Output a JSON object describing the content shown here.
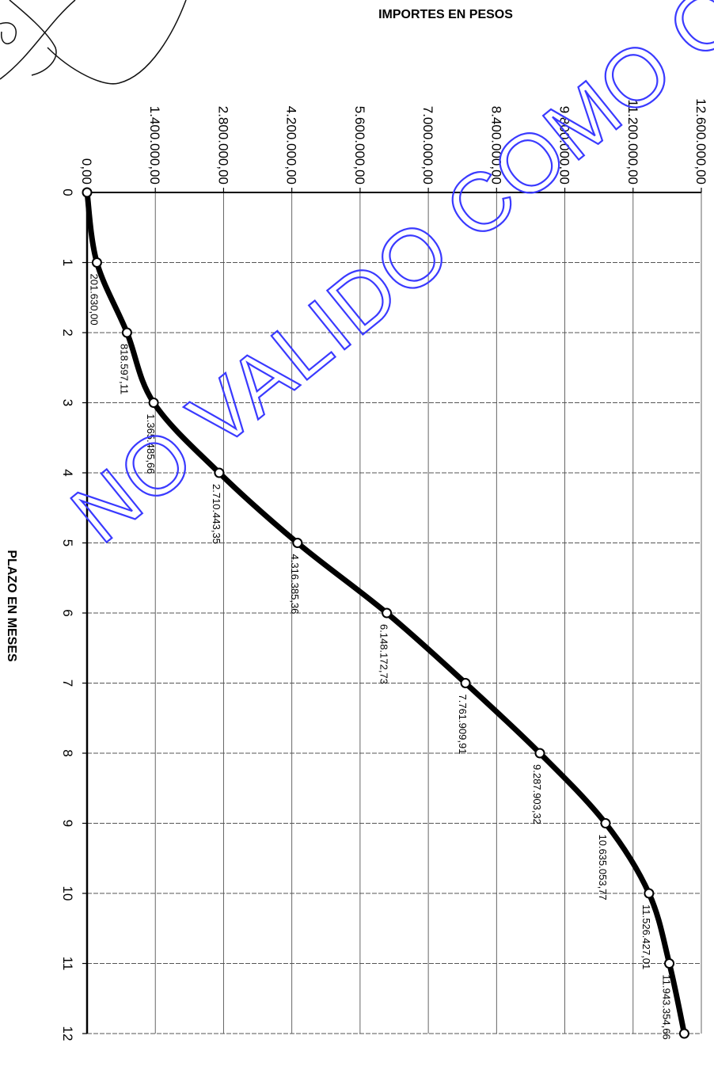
{
  "chart_data": {
    "type": "line",
    "title": "",
    "xlabel": "PLAZO EN MESES",
    "ylabel": "IMPORTES EN PESOS",
    "x": [
      0,
      1,
      2,
      3,
      4,
      5,
      6,
      7,
      8,
      9,
      10,
      11,
      12
    ],
    "y": [
      0,
      201630.0,
      818597.11,
      1365485.66,
      2710443.35,
      4316385.36,
      6148172.73,
      7761909.91,
      9287903.32,
      10635053.77,
      11526427.01,
      11943354.66,
      12250000
    ],
    "data_labels": [
      "",
      "201.630,00",
      "818.597,11",
      "1.365.485,66",
      "2.710.443,35",
      "4.316.385,36",
      "6.148.172,73",
      "7.761.909,91",
      "9.287.903,32",
      "10.635.053,77",
      "11.526.427,01",
      "11.943.354,66",
      ""
    ],
    "x_ticks": [
      "0",
      "1",
      "2",
      "3",
      "4",
      "5",
      "6",
      "7",
      "8",
      "9",
      "10",
      "11",
      "12"
    ],
    "y_ticks": [
      "0,00",
      "1.400.000,00",
      "2.800.000,00",
      "4.200.000,00",
      "5.600.000,00",
      "7.000.000,00",
      "8.400.000,00",
      "9.800.000,00",
      "11.200.000,00",
      "12.600.000,00"
    ],
    "xlim": [
      0,
      12
    ],
    "ylim": [
      0,
      12600000
    ],
    "grid": true,
    "orientation": "rotated-90-clockwise",
    "line_color": "#000000",
    "watermark": "NO VALIDO COMO ORIGINAL",
    "watermark_color": "#3a3aff"
  }
}
